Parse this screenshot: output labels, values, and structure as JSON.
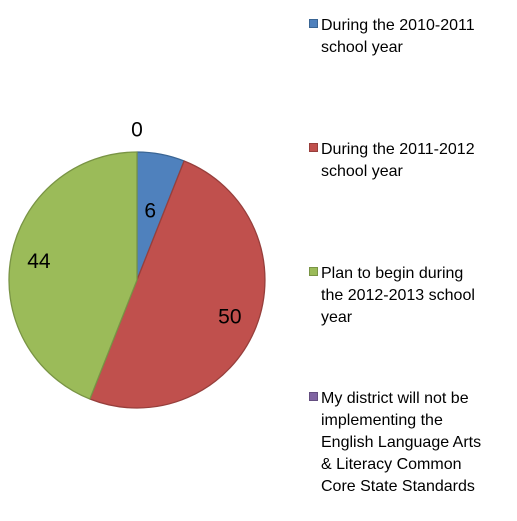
{
  "chart_data": {
    "type": "pie",
    "title": "",
    "start_angle_deg": 0,
    "direction": "clockwise",
    "legend_position": "right",
    "slices": [
      {
        "label": "During the 2010-2011\nschool year",
        "value": 6,
        "value_label": "6",
        "color": "#4F81BD",
        "border": "#3A6594"
      },
      {
        "label": "During the 2011-2012\nschool year",
        "value": 50,
        "value_label": "50",
        "color": "#C0504D",
        "border": "#973F3C"
      },
      {
        "label": "Plan to begin during\nthe 2012-2013 school\nyear",
        "value": 44,
        "value_label": "44",
        "color": "#9BBB59",
        "border": "#799445"
      },
      {
        "label": "My district will not be\nimplementing the\nEnglish Language Arts\n& Literacy Common\nCore State Standards",
        "value": 0,
        "value_label": "0",
        "color": "#8064A2",
        "border": "#644E80"
      }
    ]
  }
}
